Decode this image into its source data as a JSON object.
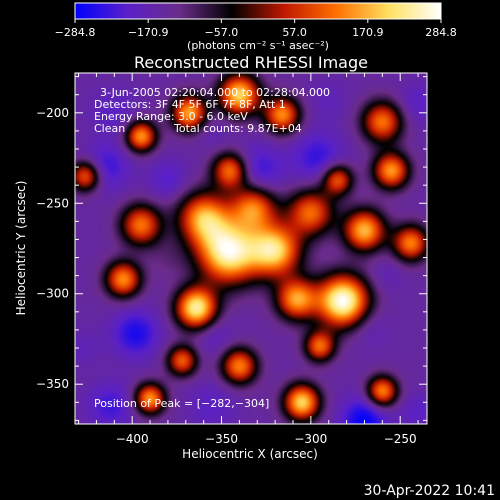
{
  "chart_data": {
    "type": "heatmap",
    "title": "Reconstructed RHESSI Image",
    "xlabel": "Heliocentric X (arcsec)",
    "ylabel": "Heliocentric Y (arcsec)",
    "xlim": [
      -432,
      -235
    ],
    "ylim": [
      -372,
      -178
    ],
    "x_ticks": [
      -400,
      -350,
      -300,
      -250
    ],
    "y_ticks": [
      -200,
      -250,
      -300,
      -350
    ],
    "x_tick_labels": [
      "−400",
      "−350",
      "−300",
      "−250"
    ],
    "y_tick_labels": [
      "−200",
      "−250",
      "−300",
      "−350"
    ],
    "colorbar": {
      "range": [
        -284.8,
        284.8
      ],
      "ticks": [
        -284.8,
        -170.9,
        -57.0,
        57.0,
        170.9,
        284.8
      ],
      "tick_labels": [
        "−284.8",
        "−170.9",
        "−57.0",
        "57.0",
        "170.9",
        "284.8"
      ],
      "unit_label": "(photons cm⁻² s⁻¹ asec⁻²)",
      "stops": [
        "#0000ff",
        "#5a20c8",
        "#6a2c8a",
        "#000000",
        "#c01800",
        "#ff7000",
        "#ffe060",
        "#ffffff"
      ]
    },
    "annotations": {
      "time_range": "3-Jun-2005 02:20:04.000 to 02:28:04.000",
      "detectors": "Detectors: 3F 4F 5F 6F 7F 8F, Att 1",
      "energy": "Energy Range: 3.0 - 6.0 keV",
      "method": "Clean",
      "counts": "Total counts: 9.87E+04",
      "peak": "Position of Peak = [−282,−304]"
    },
    "sources": [
      {
        "x": -282,
        "y": -304,
        "v": 284.8,
        "s": 10
      },
      {
        "x": -308,
        "y": -303,
        "v": 150,
        "s": 8
      },
      {
        "x": -346,
        "y": -277,
        "v": 255,
        "s": 12
      },
      {
        "x": -320,
        "y": -276,
        "v": 200,
        "s": 10
      },
      {
        "x": -364,
        "y": -308,
        "v": 240,
        "s": 8
      },
      {
        "x": -360,
        "y": -258,
        "v": 150,
        "s": 10
      },
      {
        "x": -332,
        "y": -252,
        "v": 120,
        "s": 9
      },
      {
        "x": -300,
        "y": -255,
        "v": 110,
        "s": 9
      },
      {
        "x": -270,
        "y": -265,
        "v": 175,
        "s": 8
      },
      {
        "x": -244,
        "y": -272,
        "v": 130,
        "s": 7
      },
      {
        "x": -395,
        "y": -262,
        "v": 120,
        "s": 8
      },
      {
        "x": -405,
        "y": -292,
        "v": 140,
        "s": 7
      },
      {
        "x": -340,
        "y": -190,
        "v": 200,
        "s": 8
      },
      {
        "x": -368,
        "y": -200,
        "v": 160,
        "s": 7
      },
      {
        "x": -316,
        "y": -201,
        "v": 140,
        "s": 7
      },
      {
        "x": -260,
        "y": -205,
        "v": 120,
        "s": 8
      },
      {
        "x": -395,
        "y": -213,
        "v": 150,
        "s": 6
      },
      {
        "x": -255,
        "y": -232,
        "v": 150,
        "s": 7
      },
      {
        "x": -345,
        "y": -232,
        "v": 130,
        "s": 7
      },
      {
        "x": -390,
        "y": -358,
        "v": 150,
        "s": 6
      },
      {
        "x": -305,
        "y": -360,
        "v": 200,
        "s": 7
      },
      {
        "x": -260,
        "y": -354,
        "v": 140,
        "s": 6
      },
      {
        "x": -340,
        "y": -340,
        "v": 130,
        "s": 7
      },
      {
        "x": -372,
        "y": -337,
        "v": 100,
        "s": 6
      },
      {
        "x": -295,
        "y": -329,
        "v": 110,
        "s": 6
      },
      {
        "x": -285,
        "y": -237,
        "v": 100,
        "s": 6
      },
      {
        "x": -426,
        "y": -235,
        "v": 110,
        "s": 6
      },
      {
        "x": -330,
        "y": -233,
        "v": -250,
        "s": 10
      },
      {
        "x": -380,
        "y": -237,
        "v": -210,
        "s": 8
      },
      {
        "x": -296,
        "y": -225,
        "v": -240,
        "s": 10
      },
      {
        "x": -415,
        "y": -230,
        "v": -240,
        "s": 9
      },
      {
        "x": -268,
        "y": -318,
        "v": -190,
        "s": 8
      },
      {
        "x": -258,
        "y": -290,
        "v": -180,
        "s": 7
      },
      {
        "x": -355,
        "y": -322,
        "v": -200,
        "s": 8
      },
      {
        "x": -398,
        "y": -322,
        "v": -260,
        "s": 9
      },
      {
        "x": -412,
        "y": -362,
        "v": -230,
        "s": 9
      },
      {
        "x": -355,
        "y": -362,
        "v": -200,
        "s": 9
      },
      {
        "x": -270,
        "y": -370,
        "v": -284.8,
        "s": 9
      },
      {
        "x": -240,
        "y": -365,
        "v": -200,
        "s": 7
      },
      {
        "x": -410,
        "y": -200,
        "v": -200,
        "s": 9
      },
      {
        "x": -355,
        "y": -210,
        "v": -180,
        "s": 7
      },
      {
        "x": -290,
        "y": -193,
        "v": -180,
        "s": 8
      },
      {
        "x": -240,
        "y": -195,
        "v": -200,
        "s": 8
      },
      {
        "x": -320,
        "y": -330,
        "v": -150,
        "s": 7
      },
      {
        "x": -380,
        "y": -280,
        "v": -120,
        "s": 8
      },
      {
        "x": -240,
        "y": -250,
        "v": -150,
        "s": 8
      },
      {
        "x": -430,
        "y": -280,
        "v": -150,
        "s": 8
      },
      {
        "x": -427,
        "y": -330,
        "v": -180,
        "s": 7
      }
    ]
  },
  "footer": {
    "datetime": "30-Apr-2022 10:41"
  }
}
